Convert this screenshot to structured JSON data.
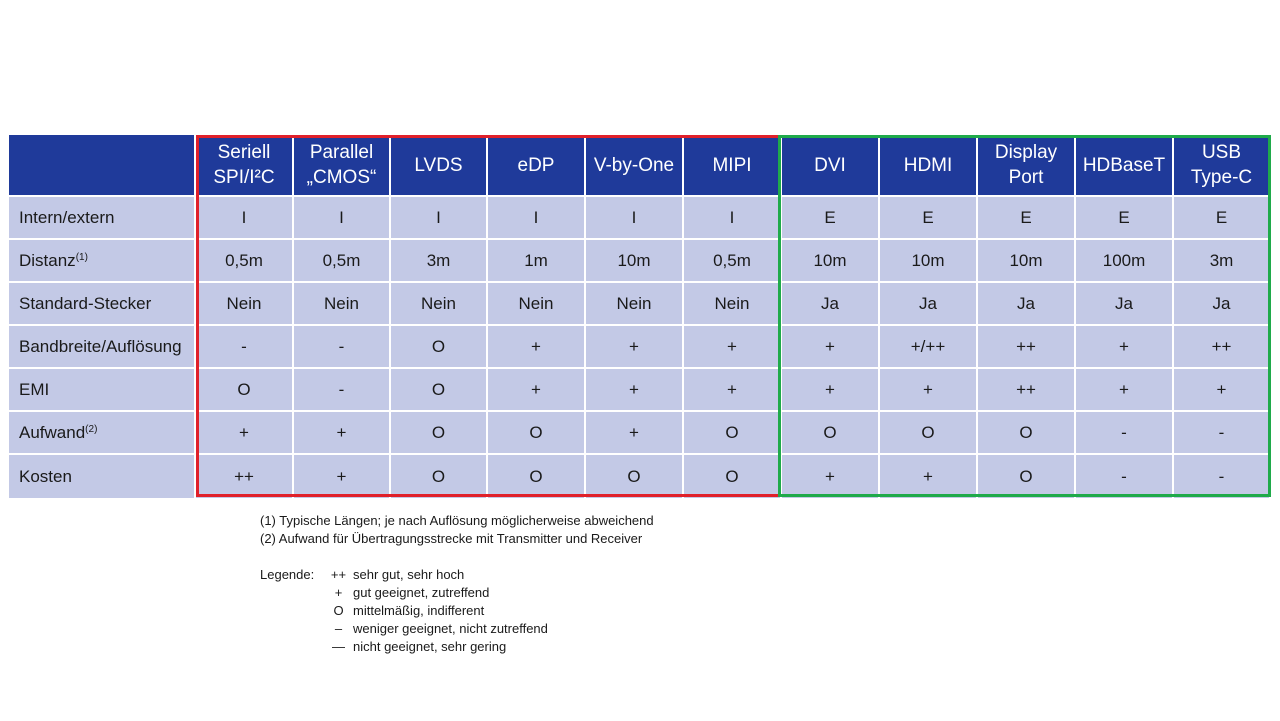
{
  "table": {
    "columns": [
      {
        "lines": [
          "Seriell",
          "SPI/I²C"
        ]
      },
      {
        "lines": [
          "Parallel",
          "„CMOS“"
        ]
      },
      {
        "lines": [
          "LVDS"
        ]
      },
      {
        "lines": [
          "eDP"
        ]
      },
      {
        "lines": [
          "V-by-One"
        ]
      },
      {
        "lines": [
          "MIPI"
        ]
      },
      {
        "lines": [
          "DVI"
        ]
      },
      {
        "lines": [
          "HDMI"
        ]
      },
      {
        "lines": [
          "Display",
          "Port"
        ]
      },
      {
        "lines": [
          "HDBaseT"
        ]
      },
      {
        "lines": [
          "USB",
          "Type-C"
        ]
      }
    ],
    "rows": [
      {
        "label": "Intern/extern",
        "sup": "",
        "cells": [
          "I",
          "I",
          "I",
          "I",
          "I",
          "I",
          "E",
          "E",
          "E",
          "E",
          "E"
        ]
      },
      {
        "label": "Distanz",
        "sup": "(1)",
        "cells": [
          "0,5m",
          "0,5m",
          "3m",
          "1m",
          "10m",
          "0,5m",
          "10m",
          "10m",
          "10m",
          "100m",
          "3m"
        ]
      },
      {
        "label": "Standard-Stecker",
        "sup": "",
        "cells": [
          "Nein",
          "Nein",
          "Nein",
          "Nein",
          "Nein",
          "Nein",
          "Ja",
          "Ja",
          "Ja",
          "Ja",
          "Ja"
        ]
      },
      {
        "label": "Bandbreite/Auflösung",
        "sup": "",
        "cells": [
          "-",
          "-",
          "O",
          "+",
          "+",
          "+",
          "+",
          "+/++",
          "++",
          "+",
          "++"
        ]
      },
      {
        "label": "EMI",
        "sup": "",
        "cells": [
          "O",
          "-",
          "O",
          "+",
          "+",
          "+",
          "+",
          "+",
          "++",
          "+",
          "+"
        ]
      },
      {
        "label": "Aufwand",
        "sup": "(2)",
        "cells": [
          "+",
          "+",
          "O",
          "O",
          "+",
          "O",
          "O",
          "O",
          "O",
          "-",
          "-"
        ]
      },
      {
        "label": "Kosten",
        "sup": "",
        "cells": [
          "++",
          "+",
          "O",
          "O",
          "O",
          "O",
          "+",
          "+",
          "O",
          "-",
          "-"
        ]
      }
    ]
  },
  "footnotes": [
    "(1) Typische Längen; je nach Auflösung möglicherweise abweichend",
    "(2) Aufwand für Übertragungsstrecke mit Transmitter und Receiver"
  ],
  "legend": {
    "title": "Legende:",
    "items": [
      {
        "symbol": "++",
        "text": "sehr gut, sehr hoch"
      },
      {
        "symbol": "+",
        "text": "gut geeignet, zutreffend"
      },
      {
        "symbol": "O",
        "text": "mittelmäßig, indifferent"
      },
      {
        "symbol": "–",
        "text": "weniger geeignet, nicht zutreffend"
      },
      {
        "symbol": "—",
        "text": "nicht geeignet, sehr gering"
      }
    ]
  },
  "colors": {
    "header_bg": "#1f3a9a",
    "cell_bg": "#c3c9e6",
    "group_internal_border": "#e0202a",
    "group_external_border": "#1faa4a"
  }
}
